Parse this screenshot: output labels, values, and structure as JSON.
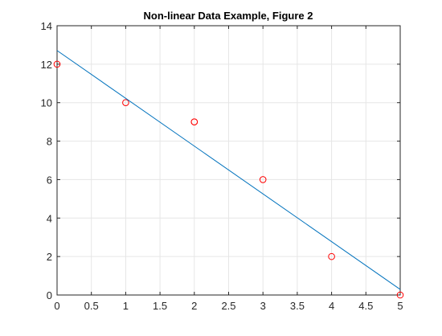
{
  "chart_data": {
    "type": "scatter",
    "title": "Non-linear Data Example, Figure 2",
    "xlabel": "",
    "ylabel": "",
    "xlim": [
      0,
      5
    ],
    "ylim": [
      0,
      14
    ],
    "x_ticks": [
      0,
      0.5,
      1,
      1.5,
      2,
      2.5,
      3,
      3.5,
      4,
      4.5,
      5
    ],
    "x_tick_labels": [
      "0",
      "0.5",
      "1",
      "1.5",
      "2",
      "2.5",
      "3",
      "3.5",
      "4",
      "4.5",
      "5"
    ],
    "y_ticks": [
      0,
      2,
      4,
      6,
      8,
      10,
      12,
      14
    ],
    "y_tick_labels": [
      "0",
      "2",
      "4",
      "6",
      "8",
      "10",
      "12",
      "14"
    ],
    "grid": true,
    "series": [
      {
        "type": "scatter",
        "marker": "circle-open",
        "color": "#ff0000",
        "x": [
          0,
          1,
          2,
          2,
          3,
          4,
          5
        ],
        "y": [
          12,
          10,
          9,
          9,
          6,
          2,
          0
        ]
      },
      {
        "type": "line",
        "color": "#0072bd",
        "x": [
          0,
          5
        ],
        "y": [
          12.71,
          0.29
        ]
      }
    ]
  },
  "colors": {
    "background": "#ffffff",
    "axes_line": "#262626",
    "grid": "#e6e6e6",
    "text": "#262626"
  }
}
